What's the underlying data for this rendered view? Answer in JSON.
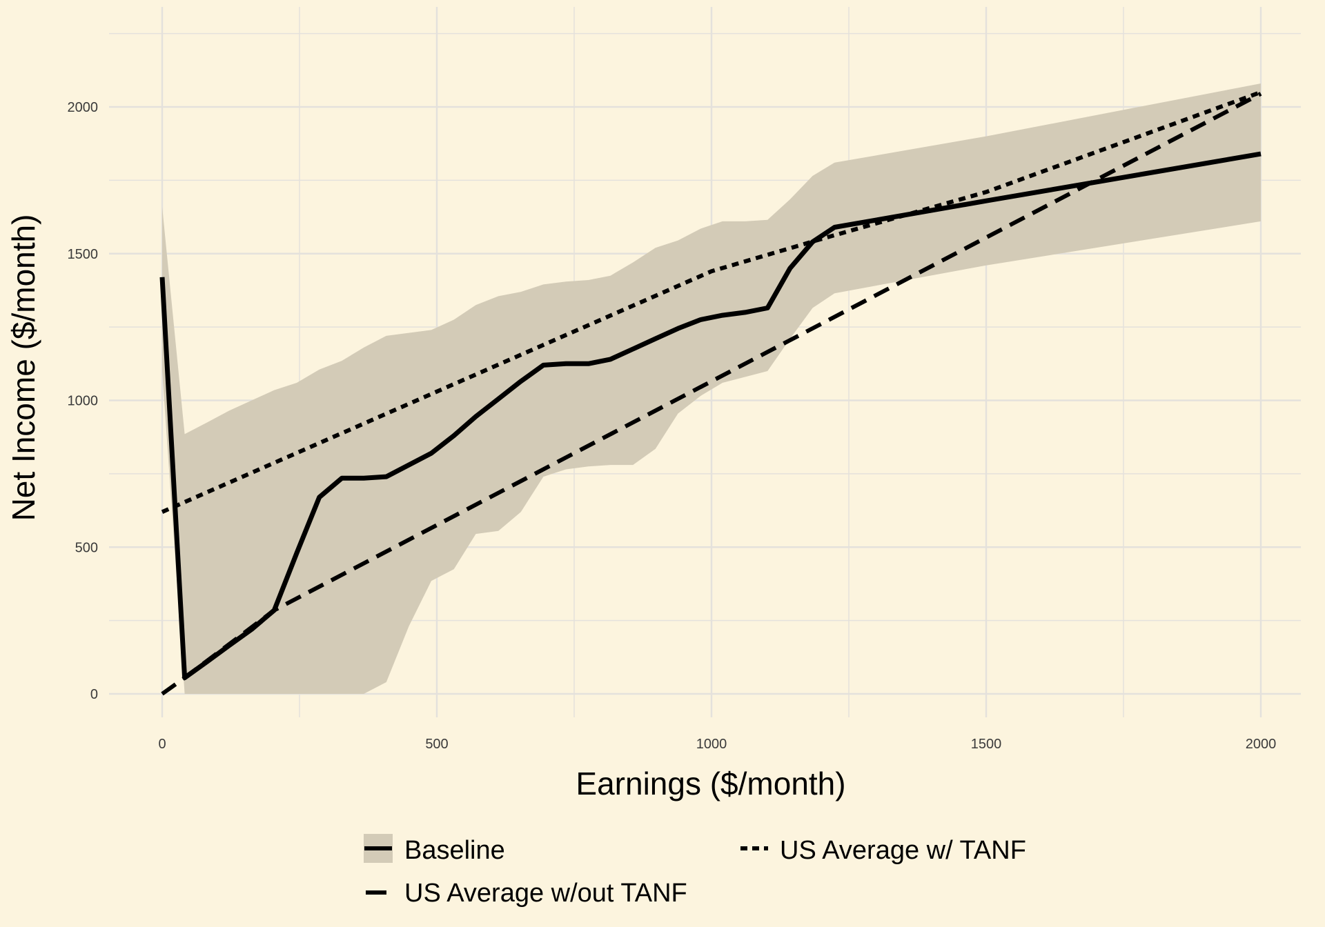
{
  "chart_data": {
    "type": "line",
    "title": "",
    "xlabel": "Earnings ($/month)",
    "ylabel": "Net Income ($/month)",
    "xlim": [
      -100,
      2080
    ],
    "ylim": [
      -80,
      2270
    ],
    "x_ticks": [
      0,
      500,
      1000,
      1500,
      2000
    ],
    "y_ticks": [
      0,
      500,
      1000,
      1500,
      2000
    ],
    "x_tick_labels": [
      "0",
      "500",
      "1000",
      "1500",
      "2000"
    ],
    "y_tick_labels": [
      "0",
      "500",
      "1000",
      "1500",
      "2000"
    ],
    "grid": true,
    "legend_position": "bottom",
    "colors": {
      "background": "#fcf4de",
      "grid": "#e4e1dc",
      "ribbon": "#d3cbb7",
      "line": "#000000"
    },
    "ribbon": {
      "x": [
        0,
        41,
        82,
        122,
        163,
        204,
        245,
        286,
        327,
        367,
        408,
        449,
        490,
        531,
        571,
        612,
        653,
        694,
        735,
        776,
        816,
        857,
        898,
        939,
        980,
        1020,
        1061,
        1102,
        1143,
        1184,
        1224,
        1500,
        2000
      ],
      "upper": [
        1660,
        885,
        925,
        965,
        1000,
        1035,
        1060,
        1105,
        1135,
        1180,
        1220,
        1230,
        1240,
        1275,
        1325,
        1355,
        1370,
        1395,
        1405,
        1410,
        1425,
        1470,
        1520,
        1545,
        1585,
        1610,
        1610,
        1615,
        1685,
        1765,
        1810,
        1900,
        2080
      ],
      "lower": [
        1100,
        0,
        0,
        0,
        0,
        0,
        0,
        0,
        0,
        0,
        40,
        230,
        385,
        425,
        545,
        555,
        620,
        740,
        765,
        775,
        780,
        780,
        835,
        955,
        1015,
        1060,
        1080,
        1100,
        1210,
        1315,
        1365,
        1460,
        1610
      ]
    },
    "series": [
      {
        "name": "Baseline",
        "style": "solid",
        "x": [
          0,
          41,
          82,
          122,
          163,
          204,
          245,
          286,
          327,
          367,
          408,
          449,
          490,
          531,
          571,
          612,
          653,
          694,
          735,
          776,
          816,
          857,
          898,
          939,
          980,
          1020,
          1061,
          1102,
          1143,
          1184,
          1224,
          1500,
          2000
        ],
        "y": [
          1420,
          55,
          110,
          165,
          220,
          285,
          480,
          670,
          735,
          735,
          740,
          780,
          820,
          880,
          945,
          1005,
          1065,
          1120,
          1125,
          1125,
          1140,
          1175,
          1210,
          1245,
          1275,
          1290,
          1300,
          1315,
          1450,
          1540,
          1590,
          1680,
          1840
        ]
      },
      {
        "name": "US Average w/ TANF",
        "style": "dotted",
        "x": [
          0,
          1000,
          1200,
          1500,
          2000
        ],
        "y": [
          620,
          1440,
          1550,
          1710,
          2050
        ]
      },
      {
        "name": "US Average w/out TANF",
        "style": "dashed",
        "x": [
          0,
          41,
          204,
          2000
        ],
        "y": [
          0,
          55,
          285,
          2045
        ]
      }
    ],
    "legend": [
      {
        "label": "Baseline",
        "style": "solid"
      },
      {
        "label": "US Average w/ TANF",
        "style": "dotted"
      },
      {
        "label": "US Average w/out TANF",
        "style": "dashed"
      }
    ]
  }
}
